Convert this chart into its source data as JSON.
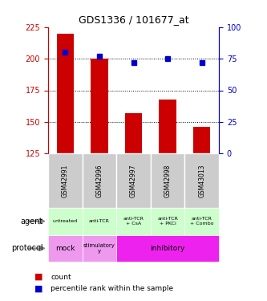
{
  "title": "GDS1336 / 101677_at",
  "samples": [
    "GSM42991",
    "GSM42996",
    "GSM42997",
    "GSM42998",
    "GSM43013"
  ],
  "count_values": [
    220,
    200,
    157,
    168,
    146
  ],
  "percentile_values": [
    80,
    77,
    72,
    75,
    72
  ],
  "ylim_left": [
    125,
    225
  ],
  "ylim_right": [
    0,
    100
  ],
  "yticks_left": [
    125,
    150,
    175,
    200,
    225
  ],
  "yticks_right": [
    0,
    25,
    50,
    75,
    100
  ],
  "bar_color": "#cc0000",
  "dot_color": "#0000cc",
  "agent_labels": [
    "untreated",
    "anti-TCR",
    "anti-TCR\n+ CsA",
    "anti-TCR\n+ PKCi",
    "anti-TCR\n+ Combo"
  ],
  "agent_color": "#ccffcc",
  "mock_color": "#ee99ee",
  "stimulatory_color": "#ee99ee",
  "inhibitory_color": "#ee22ee",
  "gsm_bg_color": "#cccccc",
  "left_axis_color": "#cc0000",
  "right_axis_color": "#0000cc",
  "dotted_yticks": [
    200,
    175,
    150
  ]
}
